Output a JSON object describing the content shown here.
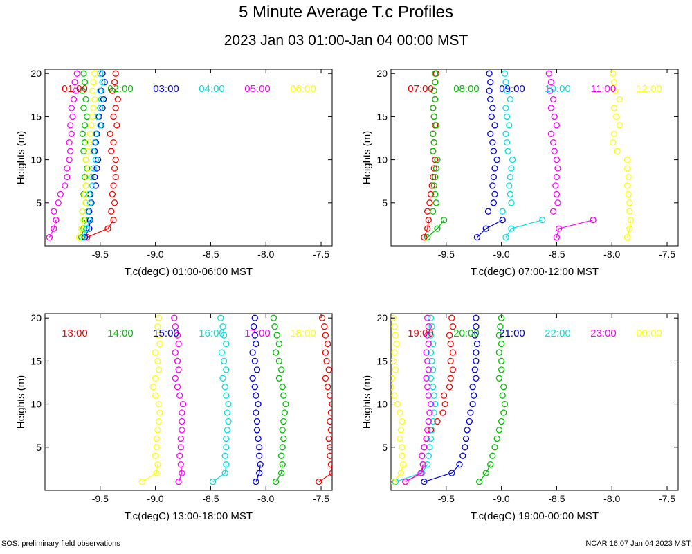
{
  "title": "5 Minute Average T.c Profiles",
  "subtitle": "2023 Jan 03 01:00-Jan 04 00:00 MST",
  "footer_left": "SOS: preliminary field observations",
  "footer_right": "NCAR 16:07 Jan 04 2023 MST",
  "palette": [
    "#ff0000",
    "#00c000",
    "#0000dd",
    "#00e0e0",
    "#ff00ff",
    "#ffff00"
  ],
  "chart_data": [
    {
      "type": "scatter",
      "xlabel": "T.c(degC) 01:00-06:00 MST",
      "ylabel": "Heights (m)",
      "xlim": [
        -10.0,
        -7.4
      ],
      "ylim": [
        0,
        20.5
      ],
      "xticks": [
        "-9.5",
        "-9.0",
        "-8.5",
        "-8.0",
        "-7.5"
      ],
      "yticks": [
        "5",
        "10",
        "15",
        "20"
      ],
      "heights": [
        1,
        2,
        3,
        4,
        5,
        6,
        7,
        8,
        9,
        10,
        11,
        12,
        13,
        14,
        15,
        16,
        17,
        18,
        19,
        20
      ],
      "series": [
        {
          "name": "01:00",
          "values": [
            -9.62,
            -9.43,
            -9.38,
            -9.4,
            -9.37,
            -9.39,
            -9.38,
            -9.36,
            -9.37,
            -9.36,
            -9.4,
            -9.38,
            -9.41,
            -9.35,
            -9.38,
            -9.36,
            -9.34,
            -9.39,
            -9.37,
            -9.36
          ]
        },
        {
          "name": "02:00",
          "values": [
            -9.67,
            -9.65,
            -9.64,
            -9.66,
            -9.63,
            -9.65,
            -9.63,
            -9.64,
            -9.62,
            -9.63,
            -9.65,
            -9.64,
            -9.66,
            -9.64,
            -9.62,
            -9.65,
            -9.63,
            -9.66,
            -9.64,
            -9.65
          ]
        },
        {
          "name": "03:00",
          "values": [
            -9.64,
            -9.6,
            -9.59,
            -9.6,
            -9.58,
            -9.59,
            -9.54,
            -9.55,
            -9.53,
            -9.52,
            -9.55,
            -9.54,
            -9.53,
            -9.49,
            -9.51,
            -9.48,
            -9.47,
            -9.49,
            -9.46,
            -9.48
          ]
        },
        {
          "name": "04:00",
          "values": [
            -9.66,
            -9.62,
            -9.6,
            -9.61,
            -9.59,
            -9.6,
            -9.57,
            -9.58,
            -9.56,
            -9.54,
            -9.56,
            -9.55,
            -9.54,
            -9.5,
            -9.52,
            -9.5,
            -9.49,
            -9.5,
            -9.48,
            -9.5
          ]
        },
        {
          "name": "05:00",
          "values": [
            -9.96,
            -9.92,
            -9.9,
            -9.92,
            -9.88,
            -9.86,
            -9.82,
            -9.8,
            -9.8,
            -9.78,
            -9.77,
            -9.78,
            -9.76,
            -9.77,
            -9.75,
            -9.76,
            -9.74,
            -9.72,
            -9.73,
            -9.71
          ]
        },
        {
          "name": "06:00",
          "values": [
            -9.69,
            -9.67,
            -9.65,
            -9.66,
            -9.63,
            -9.64,
            -9.63,
            -9.62,
            -9.61,
            -9.63,
            -9.61,
            -9.6,
            -9.59,
            -9.58,
            -9.57,
            -9.56,
            -9.55,
            -9.57,
            -9.56,
            -9.55
          ]
        }
      ],
      "legend_labels": [
        "01:00",
        "02:00",
        "03:00",
        "04:00",
        "05:00",
        "06:00"
      ]
    },
    {
      "type": "scatter",
      "xlabel": "T.c(degC) 07:00-12:00 MST",
      "ylabel": "Heights (m)",
      "xlim": [
        -10.0,
        -7.4
      ],
      "ylim": [
        0,
        20.5
      ],
      "xticks": [
        "-9.5",
        "-9.0",
        "-8.5",
        "-8.0",
        "-7.5"
      ],
      "yticks": [
        "5",
        "10",
        "15",
        "20"
      ],
      "heights": [
        1,
        2,
        3,
        4,
        5,
        6,
        7,
        8,
        9,
        10,
        11,
        12,
        13,
        14,
        15,
        16,
        17,
        18,
        19,
        20
      ],
      "series": [
        {
          "name": "07:00",
          "values": [
            -9.7,
            -9.67,
            -9.66,
            -9.67,
            -9.65,
            -9.64,
            -9.63,
            -9.62,
            -9.61,
            -9.6,
            -9.62,
            -9.61,
            -9.62,
            -9.6,
            -9.61,
            -9.62,
            -9.6,
            -9.61,
            -9.6,
            -9.59
          ]
        },
        {
          "name": "08:00",
          "values": [
            -9.67,
            -9.58,
            -9.52,
            -9.62,
            -9.59,
            -9.6,
            -9.61,
            -9.6,
            -9.59,
            -9.58,
            -9.62,
            -9.61,
            -9.62,
            -9.59,
            -9.61,
            -9.62,
            -9.6,
            -9.61,
            -9.6,
            -9.6
          ]
        },
        {
          "name": "09:00",
          "values": [
            -9.22,
            -9.14,
            -8.99,
            -9.12,
            -9.07,
            -9.06,
            -9.08,
            -9.07,
            -9.06,
            -9.04,
            -9.07,
            -9.08,
            -9.1,
            -9.06,
            -9.09,
            -9.08,
            -9.1,
            -9.11,
            -9.1,
            -9.11
          ]
        },
        {
          "name": "10:00",
          "values": [
            -8.96,
            -8.91,
            -8.63,
            -8.99,
            -8.91,
            -8.92,
            -8.93,
            -8.92,
            -8.91,
            -8.9,
            -8.94,
            -8.95,
            -8.96,
            -8.93,
            -8.95,
            -8.96,
            -8.92,
            -8.95,
            -8.96,
            -8.97
          ]
        },
        {
          "name": "11:00",
          "values": [
            -8.5,
            -8.48,
            -8.17,
            -8.53,
            -8.49,
            -8.5,
            -8.51,
            -8.5,
            -8.49,
            -8.5,
            -8.52,
            -8.53,
            -8.55,
            -8.5,
            -8.52,
            -8.55,
            -8.53,
            -8.56,
            -8.55,
            -8.57
          ]
        },
        {
          "name": "12:00",
          "values": [
            -7.86,
            -7.84,
            -7.83,
            -7.84,
            -7.84,
            -7.85,
            -7.86,
            -7.85,
            -7.86,
            -7.86,
            -7.95,
            -7.99,
            -7.98,
            -7.93,
            -7.96,
            -7.98,
            -7.93,
            -7.97,
            -7.98,
            -7.99
          ]
        }
      ],
      "legend_labels": [
        "07:00",
        "08:00",
        "09:00",
        "10:00",
        "11:00",
        "12:00"
      ]
    },
    {
      "type": "scatter",
      "xlabel": "T.c(degC) 13:00-18:00 MST",
      "ylabel": "Heights (m)",
      "xlim": [
        -10.0,
        -7.4
      ],
      "ylim": [
        0,
        20.5
      ],
      "xticks": [
        "-9.5",
        "-9.0",
        "-8.5",
        "-8.0",
        "-7.5"
      ],
      "yticks": [
        "5",
        "10",
        "15",
        "20"
      ],
      "heights": [
        1,
        2,
        3,
        4,
        5,
        6,
        7,
        8,
        9,
        10,
        11,
        12,
        13,
        14,
        15,
        16,
        17,
        18,
        19,
        20
      ],
      "series": [
        {
          "name": "13:00",
          "values": [
            -7.52,
            -7.4,
            -7.41,
            -7.42,
            -7.42,
            -7.43,
            -7.41,
            -7.42,
            -7.41,
            -7.4,
            -7.42,
            -7.44,
            -7.46,
            -7.43,
            -7.45,
            -7.46,
            -7.44,
            -7.46,
            -7.47,
            -7.49
          ]
        },
        {
          "name": "14:00",
          "values": [
            -7.91,
            -7.86,
            -7.85,
            -7.86,
            -7.85,
            -7.84,
            -7.85,
            -7.84,
            -7.83,
            -7.82,
            -7.84,
            -7.85,
            -7.88,
            -7.86,
            -7.88,
            -7.91,
            -7.88,
            -7.9,
            -7.92,
            -7.93
          ]
        },
        {
          "name": "15:00",
          "values": [
            -8.09,
            -8.06,
            -8.05,
            -8.06,
            -8.06,
            -8.07,
            -8.08,
            -8.08,
            -8.09,
            -8.07,
            -8.09,
            -8.1,
            -8.12,
            -8.08,
            -8.1,
            -8.12,
            -8.09,
            -8.1,
            -8.11,
            -8.1
          ]
        },
        {
          "name": "16:00",
          "values": [
            -8.48,
            -8.37,
            -8.36,
            -8.37,
            -8.36,
            -8.36,
            -8.35,
            -8.34,
            -8.35,
            -8.34,
            -8.36,
            -8.37,
            -8.39,
            -8.36,
            -8.38,
            -8.4,
            -8.36,
            -8.38,
            -8.39,
            -8.41
          ]
        },
        {
          "name": "17:00",
          "values": [
            -8.79,
            -8.76,
            -8.77,
            -8.78,
            -8.77,
            -8.77,
            -8.76,
            -8.76,
            -8.76,
            -8.75,
            -8.78,
            -8.8,
            -8.82,
            -8.79,
            -8.8,
            -8.82,
            -8.79,
            -8.8,
            -8.82,
            -8.83
          ]
        },
        {
          "name": "18:00",
          "values": [
            -9.12,
            -8.99,
            -8.98,
            -9.0,
            -8.99,
            -8.99,
            -8.98,
            -8.97,
            -8.96,
            -8.97,
            -9.0,
            -9.02,
            -9.0,
            -8.97,
            -8.98,
            -9.0,
            -8.96,
            -8.97,
            -8.98,
            -8.97
          ]
        }
      ],
      "legend_labels": [
        "13:00",
        "14:00",
        "15:00",
        "16:00",
        "17:00",
        "18:00"
      ]
    },
    {
      "type": "scatter",
      "xlabel": "T.c(degC) 19:00-00:00 MST",
      "ylabel": "Heights (m)",
      "xlim": [
        -10.0,
        -7.4
      ],
      "ylim": [
        0,
        20.5
      ],
      "xticks": [
        "-9.5",
        "-9.0",
        "-8.5",
        "-8.0",
        "-7.5"
      ],
      "yticks": [
        "5",
        "10",
        "15",
        "20"
      ],
      "heights": [
        1,
        2,
        3,
        4,
        5,
        6,
        7,
        8,
        9,
        10,
        11,
        12,
        13,
        14,
        15,
        16,
        17,
        18,
        19,
        20
      ],
      "series": [
        {
          "name": "19:00",
          "values": [
            -9.87,
            -9.72,
            -9.71,
            -9.72,
            -9.7,
            -9.68,
            -9.64,
            -9.58,
            -9.53,
            -9.51,
            -9.52,
            -9.47,
            -9.46,
            -9.44,
            -9.46,
            -9.44,
            -9.46,
            -9.47,
            -9.44,
            -9.45
          ]
        },
        {
          "name": "20:00",
          "values": [
            -9.2,
            -9.14,
            -9.1,
            -9.08,
            -9.06,
            -9.04,
            -9.02,
            -9.0,
            -8.98,
            -8.97,
            -8.99,
            -8.98,
            -9.02,
            -9.0,
            -9.0,
            -9.02,
            -9.0,
            -9.02,
            -9.01,
            -9.0
          ]
        },
        {
          "name": "21:00",
          "values": [
            -9.7,
            -9.45,
            -9.38,
            -9.35,
            -9.33,
            -9.32,
            -9.31,
            -9.29,
            -9.28,
            -9.26,
            -9.25,
            -9.26,
            -9.23,
            -9.24,
            -9.23,
            -9.23,
            -9.22,
            -9.24,
            -9.23,
            -9.23
          ]
        },
        {
          "name": "22:00",
          "values": [
            -9.96,
            -9.72,
            -9.67,
            -9.66,
            -9.65,
            -9.64,
            -9.63,
            -9.62,
            -9.61,
            -9.6,
            -9.61,
            -9.62,
            -9.64,
            -9.62,
            -9.63,
            -9.64,
            -9.62,
            -9.64,
            -9.63,
            -9.64
          ]
        },
        {
          "name": "23:00",
          "values": [
            -9.87,
            -9.73,
            -9.71,
            -9.72,
            -9.7,
            -9.68,
            -9.67,
            -9.66,
            -9.65,
            -9.64,
            -9.66,
            -9.67,
            -9.68,
            -9.66,
            -9.67,
            -9.68,
            -9.66,
            -9.67,
            -9.66,
            -9.67
          ]
        },
        {
          "name": "00:00",
          "values": [
            -9.98,
            -9.91,
            -9.89,
            -9.9,
            -9.9,
            -9.92,
            -9.91,
            -9.9,
            -9.92,
            -9.94,
            -9.97,
            -10.0,
            -9.99,
            -9.96,
            -9.98,
            -9.97,
            -9.95,
            -9.96,
            -9.97,
            -9.98
          ]
        }
      ],
      "legend_labels": [
        "19:00",
        "20:00",
        "21:00",
        "22:00",
        "23:00",
        "00:00"
      ]
    }
  ]
}
